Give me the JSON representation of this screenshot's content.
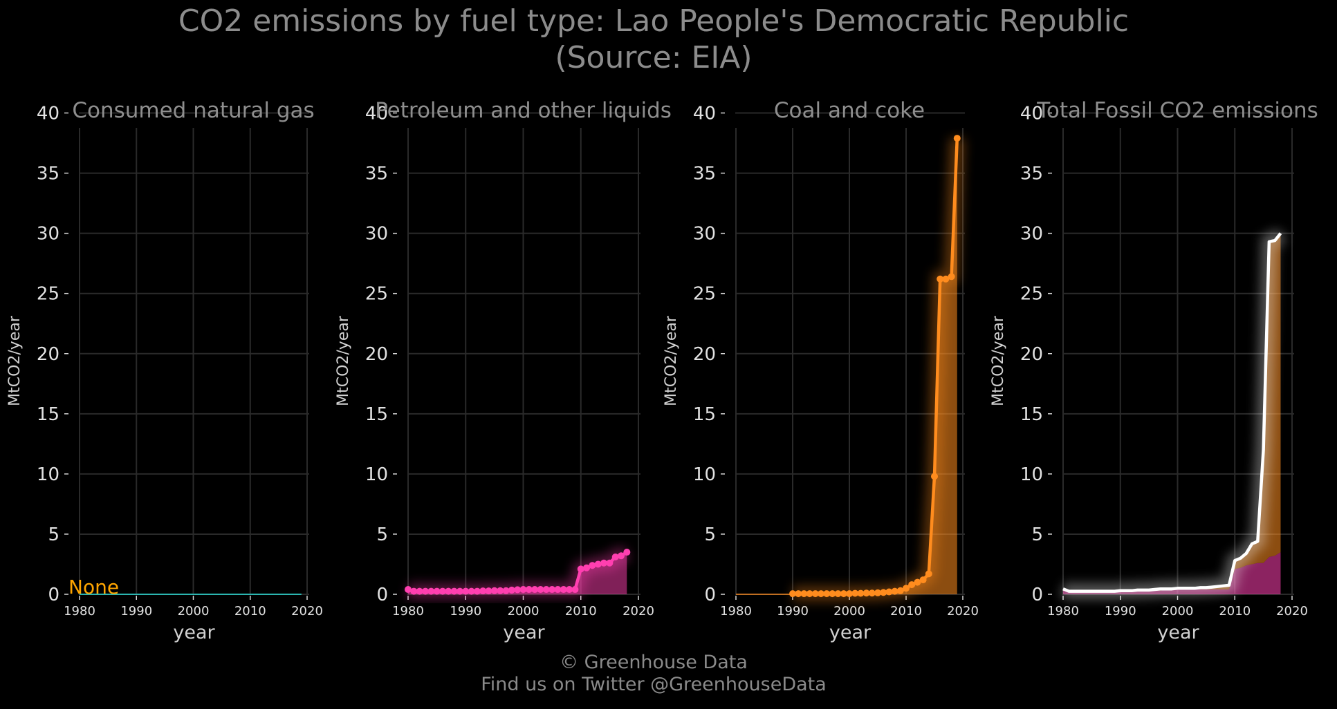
{
  "title_line1": "CO2 emissions by fuel type: Lao People's Democratic Republic",
  "title_line2": "(Source: EIA)",
  "credit_line1": "© Greenhouse Data",
  "credit_line2": "Find us on Twitter @GreenhouseData",
  "colors": {
    "gas": "#2bb5b0",
    "petroleum": "#ff3fb0",
    "coal": "#ff8c1e",
    "total": "#ffffff",
    "none_label": "#ffa500"
  },
  "chart_data": [
    {
      "type": "line",
      "title": "Consumed natural gas",
      "xlabel": "year",
      "ylabel": "MtCO2/year",
      "xlim": [
        1980,
        2020
      ],
      "ylim": [
        0,
        40
      ],
      "xticks": [
        1980,
        1990,
        2000,
        2010,
        2020
      ],
      "yticks": [
        0,
        5,
        10,
        15,
        20,
        25,
        30,
        35,
        40
      ],
      "grid": true,
      "annotation": "None",
      "series": [
        {
          "color_key": "gas",
          "x": [
            1980,
            2019
          ],
          "y": [
            0,
            0
          ]
        }
      ]
    },
    {
      "type": "area",
      "title": "Petroleum and other liquids",
      "xlabel": "year",
      "ylabel": "MtCO2/year",
      "xlim": [
        1980,
        2020
      ],
      "ylim": [
        0,
        40
      ],
      "xticks": [
        1980,
        1990,
        2000,
        2010,
        2020
      ],
      "yticks": [
        0,
        5,
        10,
        15,
        20,
        25,
        30,
        35,
        40
      ],
      "grid": true,
      "series": [
        {
          "color_key": "petroleum",
          "markers": true,
          "x": [
            1980,
            1981,
            1982,
            1983,
            1984,
            1985,
            1986,
            1987,
            1988,
            1989,
            1990,
            1991,
            1992,
            1993,
            1994,
            1995,
            1996,
            1997,
            1998,
            1999,
            2000,
            2001,
            2002,
            2003,
            2004,
            2005,
            2006,
            2007,
            2008,
            2009,
            2010,
            2011,
            2012,
            2013,
            2014,
            2015,
            2016,
            2017,
            2018
          ],
          "y": [
            0.4,
            0.25,
            0.25,
            0.25,
            0.25,
            0.25,
            0.25,
            0.25,
            0.25,
            0.25,
            0.25,
            0.25,
            0.25,
            0.28,
            0.28,
            0.3,
            0.3,
            0.3,
            0.35,
            0.38,
            0.4,
            0.4,
            0.4,
            0.4,
            0.4,
            0.4,
            0.4,
            0.4,
            0.4,
            0.4,
            2.1,
            2.2,
            2.4,
            2.5,
            2.6,
            2.6,
            3.1,
            3.2,
            3.5
          ]
        }
      ]
    },
    {
      "type": "area",
      "title": "Coal and coke",
      "xlabel": "year",
      "ylabel": "MtCO2/year",
      "xlim": [
        1980,
        2020
      ],
      "ylim": [
        0,
        40
      ],
      "xticks": [
        1980,
        1990,
        2000,
        2010,
        2020
      ],
      "yticks": [
        0,
        5,
        10,
        15,
        20,
        25,
        30,
        35,
        40
      ],
      "grid": true,
      "series": [
        {
          "color_key": "coal",
          "markers": true,
          "prefix_line": [
            1980,
            1990
          ],
          "x": [
            1990,
            1991,
            1992,
            1993,
            1994,
            1995,
            1996,
            1997,
            1998,
            1999,
            2000,
            2001,
            2002,
            2003,
            2004,
            2005,
            2006,
            2007,
            2008,
            2009,
            2010,
            2011,
            2012,
            2013,
            2014,
            2015,
            2016,
            2017,
            2018,
            2019
          ],
          "y": [
            0.05,
            0.05,
            0.05,
            0.05,
            0.05,
            0.05,
            0.05,
            0.05,
            0.05,
            0.05,
            0.05,
            0.08,
            0.08,
            0.1,
            0.1,
            0.12,
            0.15,
            0.2,
            0.25,
            0.3,
            0.5,
            0.8,
            1.0,
            1.2,
            1.7,
            9.8,
            26.2,
            26.2,
            26.4,
            37.9
          ]
        }
      ]
    },
    {
      "type": "area",
      "title": "Total Fossil CO2 emissions",
      "xlabel": "year",
      "ylabel": "MtCO2/year",
      "xlim": [
        1980,
        2020
      ],
      "ylim": [
        0,
        40
      ],
      "xticks": [
        1980,
        1990,
        2000,
        2010,
        2020
      ],
      "yticks": [
        0,
        5,
        10,
        15,
        20,
        25,
        30,
        35,
        40
      ],
      "grid": true,
      "series": [
        {
          "color_key": "total",
          "markers": false,
          "x": [
            1980,
            1981,
            1982,
            1983,
            1984,
            1985,
            1986,
            1987,
            1988,
            1989,
            1990,
            1991,
            1992,
            1993,
            1994,
            1995,
            1996,
            1997,
            1998,
            1999,
            2000,
            2001,
            2002,
            2003,
            2004,
            2005,
            2006,
            2007,
            2008,
            2009,
            2010,
            2011,
            2012,
            2013,
            2014,
            2015,
            2016,
            2017,
            2018
          ],
          "y": [
            0.45,
            0.25,
            0.25,
            0.25,
            0.25,
            0.25,
            0.25,
            0.25,
            0.25,
            0.25,
            0.3,
            0.3,
            0.3,
            0.35,
            0.35,
            0.35,
            0.4,
            0.45,
            0.45,
            0.45,
            0.5,
            0.5,
            0.5,
            0.5,
            0.55,
            0.55,
            0.6,
            0.65,
            0.7,
            0.75,
            2.8,
            3.0,
            3.4,
            4.2,
            4.4,
            12.0,
            29.3,
            29.4,
            30.0
          ]
        }
      ]
    }
  ]
}
